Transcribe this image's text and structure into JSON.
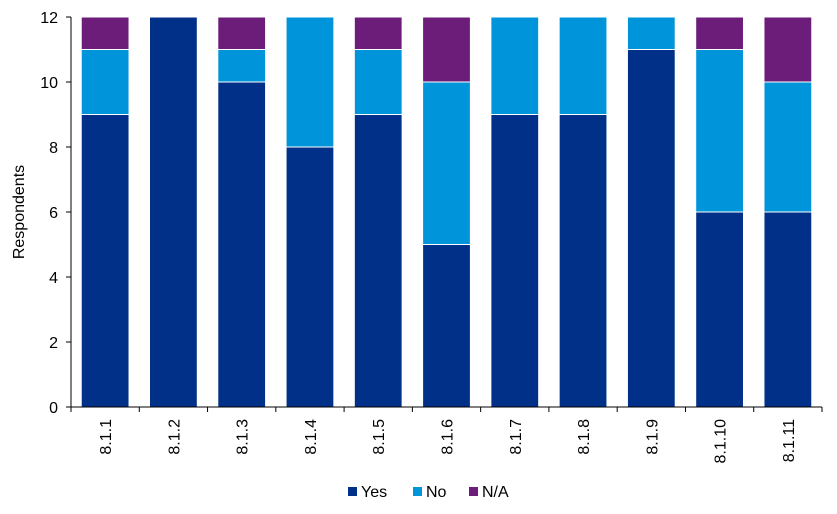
{
  "chart_data": {
    "type": "bar",
    "stacked": true,
    "categories": [
      "8.1.1",
      "8.1.2",
      "8.1.3",
      "8.1.4",
      "8.1.5",
      "8.1.6",
      "8.1.7",
      "8.1.8",
      "8.1.9",
      "8.1.10",
      "8.1.11"
    ],
    "series": [
      {
        "name": "Yes",
        "color": "#003087",
        "values": [
          9,
          12,
          10,
          8,
          9,
          5,
          9,
          9,
          11,
          6,
          6
        ]
      },
      {
        "name": "No",
        "color": "#0095da",
        "values": [
          2,
          0,
          1,
          4,
          2,
          5,
          3,
          3,
          1,
          5,
          4
        ]
      },
      {
        "name": "N/A",
        "color": "#6c1d7a",
        "values": [
          1,
          0,
          1,
          0,
          1,
          2,
          0,
          0,
          0,
          1,
          2
        ]
      }
    ],
    "ylabel": "Respondents",
    "ylim": [
      0,
      12
    ],
    "yticks": [
      0,
      2,
      4,
      6,
      8,
      10,
      12
    ],
    "grid": false,
    "legend_position": "bottom"
  }
}
